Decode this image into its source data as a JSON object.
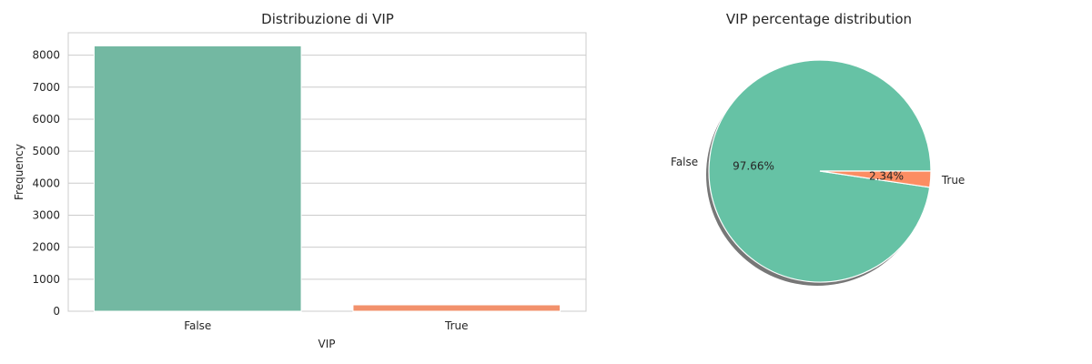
{
  "chart_data": [
    {
      "type": "bar",
      "title": "Distribuzione di VIP",
      "xlabel": "VIP",
      "ylabel": "Frequency",
      "categories": [
        "False",
        "True"
      ],
      "values": [
        8291,
        199
      ],
      "ylim": [
        0,
        8700
      ],
      "yticks": [
        0,
        1000,
        2000,
        3000,
        4000,
        5000,
        6000,
        7000,
        8000
      ],
      "grid": true,
      "colors": [
        "#73b8a2",
        "#f2916c"
      ]
    },
    {
      "type": "pie",
      "title": "VIP percentage distribution",
      "labels": [
        "False",
        "True"
      ],
      "values": [
        97.66,
        2.34
      ],
      "value_labels": [
        "97.66%",
        "2.34%"
      ],
      "shadow": true,
      "colors": [
        "#66c2a5",
        "#fc8d62"
      ]
    }
  ]
}
